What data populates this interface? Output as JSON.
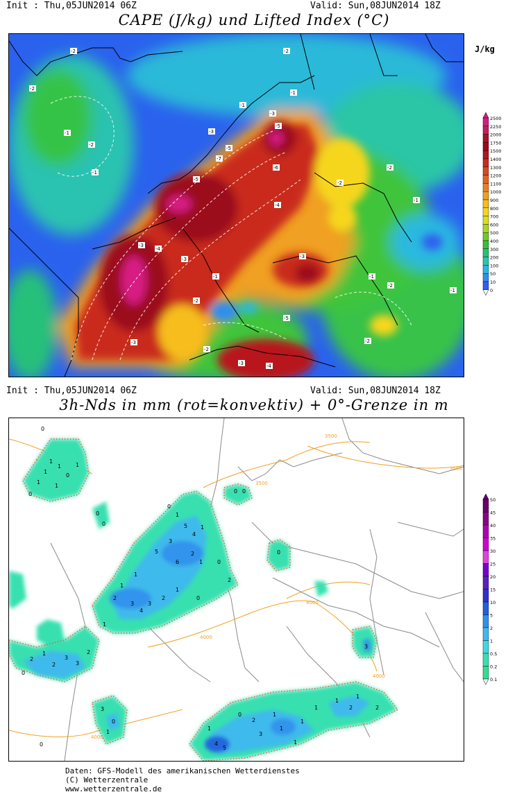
{
  "top_panel": {
    "init": "Init : Thu,05JUN2014 06Z",
    "valid": "Valid: Sun,08JUN2014 18Z",
    "title": "CAPE (J/kg) und Lifted Index (°C)",
    "unit": "J/kg",
    "colorbar": {
      "levels": [
        "2500",
        "2250",
        "2000",
        "1750",
        "1500",
        "1400",
        "1300",
        "1200",
        "1100",
        "1000",
        "900",
        "800",
        "700",
        "600",
        "500",
        "400",
        "300",
        "200",
        "100",
        "50",
        "10",
        "0"
      ],
      "colors": [
        "#d81b84",
        "#c21d5c",
        "#a80f2a",
        "#9c0a1a",
        "#b8141e",
        "#c92b1e",
        "#d6491e",
        "#e06420",
        "#e98122",
        "#f09f20",
        "#f6bd1c",
        "#f6d61a",
        "#d9e01c",
        "#a8d81e",
        "#6ccc2a",
        "#34c13a",
        "#27c07a",
        "#28c6ae",
        "#27b9e2",
        "#2f8ef0",
        "#2f5ff0"
      ]
    },
    "li_labels": [
      "-2",
      "-2",
      "-1",
      "-2",
      "-1",
      "-2",
      "-1",
      "-1",
      "-3",
      "-3",
      "-5",
      "-5",
      "-7",
      "-5",
      "-6",
      "-4",
      "-2",
      "-2",
      "-1",
      "-3",
      "-4",
      "-3",
      "-2",
      "-1",
      "-1",
      "-2",
      "-3",
      "-5",
      "-4",
      "-2",
      "-3",
      "-3",
      "-2",
      "-1"
    ]
  },
  "bottom_panel": {
    "init": "Init : Thu,05JUN2014 06Z",
    "valid": "Valid: Sun,08JUN2014 18Z",
    "title": "3h-Nds in mm (rot=konvektiv) + 0°-Grenze in m",
    "colorbar": {
      "levels": [
        "50",
        "45",
        "40",
        "35",
        "30",
        "25",
        "20",
        "15",
        "10",
        "5",
        "2",
        "1",
        "0.5",
        "0.2",
        "0.1"
      ],
      "colors": [
        "#6a006a",
        "#8a008a",
        "#b000b0",
        "#d000d0",
        "#e040e0",
        "#7a00d0",
        "#5a20c0",
        "#3030d0",
        "#2060e0",
        "#3090f0",
        "#40b8f0",
        "#40d8e0",
        "#38e0b0",
        "#30e090"
      ]
    },
    "freezing_level_labels": [
      "3500",
      "3500",
      "3500",
      "3500",
      "4000",
      "4000",
      "4000",
      "4000"
    ],
    "precip_values": [
      "0",
      "1",
      "1",
      "0",
      "1",
      "0",
      "1",
      "1",
      "1",
      "0",
      "0",
      "0",
      "1",
      "5",
      "4",
      "1",
      "3",
      "5",
      "2",
      "1",
      "0",
      "6",
      "2",
      "1",
      "1",
      "2",
      "3",
      "4",
      "3",
      "2",
      "1",
      "0",
      "1",
      "2",
      "1",
      "2",
      "3",
      "3",
      "2",
      "0",
      "3",
      "0",
      "1",
      "4",
      "1",
      "0",
      "2",
      "5",
      "1",
      "1",
      "1",
      "0",
      "0",
      "0",
      "1",
      "2",
      "3",
      "1",
      "3",
      "2",
      "1",
      "1",
      "0"
    ]
  },
  "footer": {
    "line1": "Daten: GFS-Modell des amerikanischen Wetterdienstes",
    "line2": "(C) Wetterzentrale",
    "line3": "www.wetterzentrale.de"
  }
}
